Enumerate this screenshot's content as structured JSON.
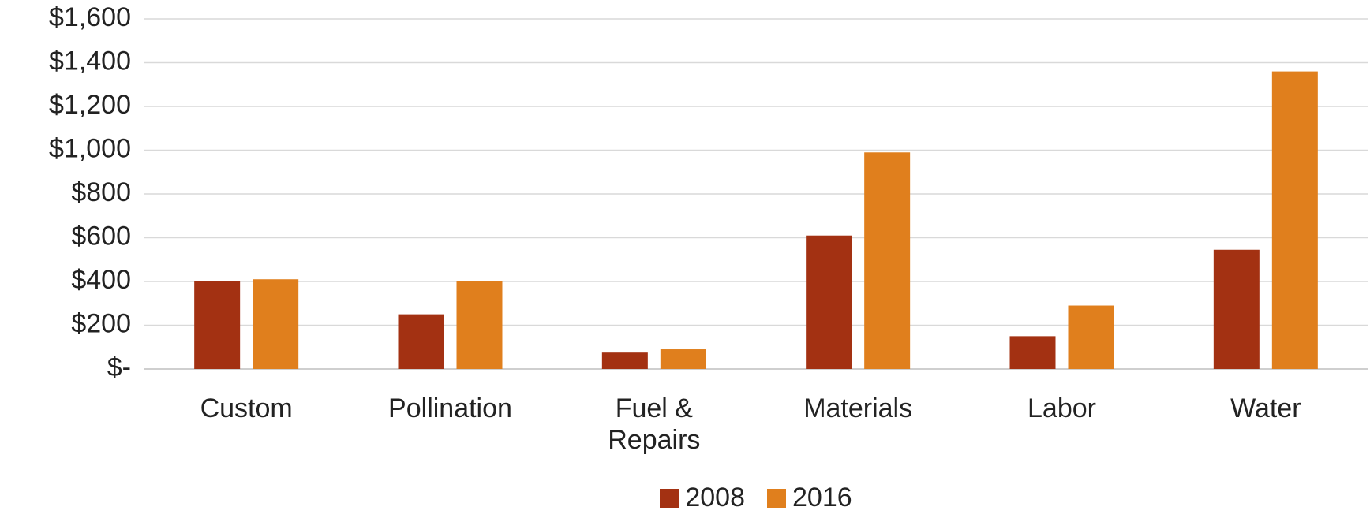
{
  "chart_data": {
    "type": "bar",
    "categories": [
      "Custom",
      "Pollination",
      "Fuel & Repairs",
      "Materials",
      "Labor",
      "Water"
    ],
    "series": [
      {
        "name": "2008",
        "color": "#a33112",
        "values": [
          400,
          250,
          75,
          610,
          150,
          545
        ]
      },
      {
        "name": "2016",
        "color": "#e07f1d",
        "values": [
          410,
          400,
          90,
          990,
          290,
          1360
        ]
      }
    ],
    "ylim": [
      0,
      1600
    ],
    "yticks": [
      {
        "value": 0,
        "label": "$-"
      },
      {
        "value": 200,
        "label": "$200"
      },
      {
        "value": 400,
        "label": "$400"
      },
      {
        "value": 600,
        "label": "$600"
      },
      {
        "value": 800,
        "label": "$800"
      },
      {
        "value": 1000,
        "label": "$1,000"
      },
      {
        "value": 1200,
        "label": "$1,200"
      },
      {
        "value": 1400,
        "label": "$1,400"
      },
      {
        "value": 1600,
        "label": "$1,600"
      }
    ],
    "grid": true,
    "legend": "bottom"
  }
}
